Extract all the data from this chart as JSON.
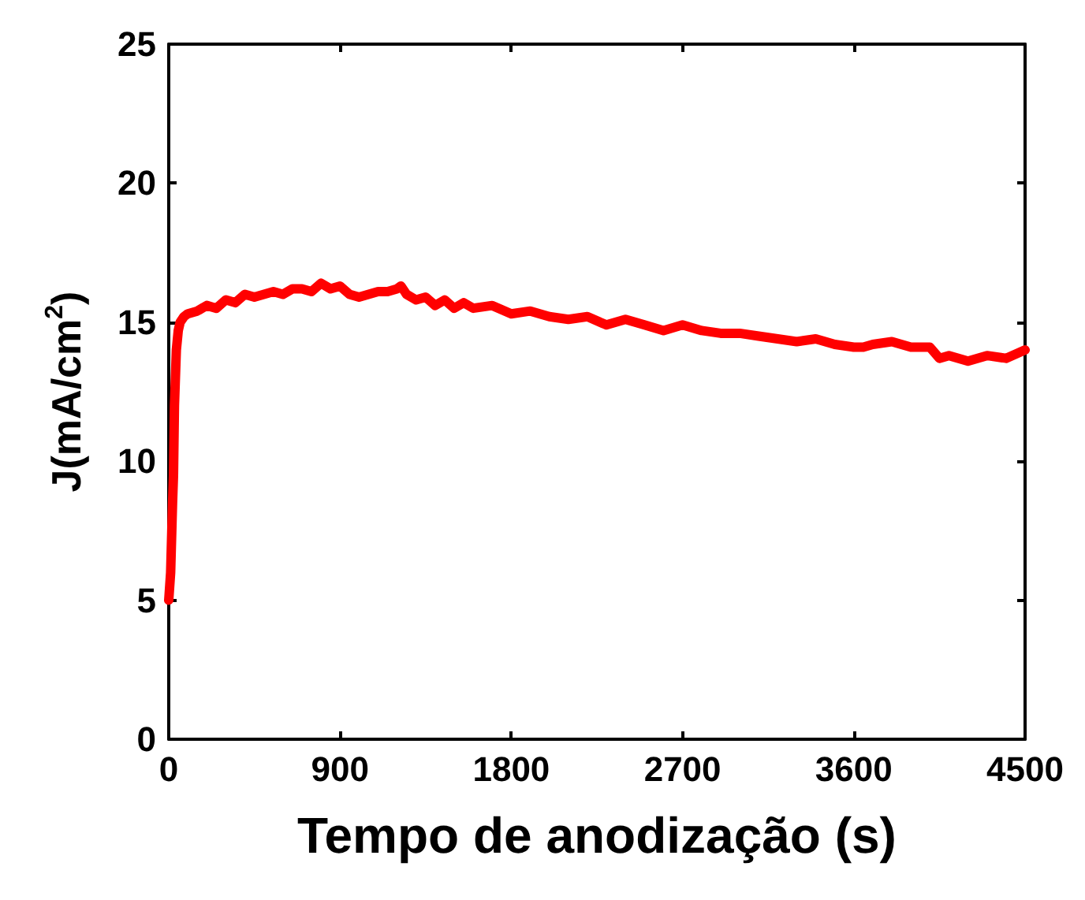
{
  "chart_data": {
    "type": "line",
    "xlabel": "Tempo de anodização (s)",
    "ylabel": "J(mA/cm$^{2}$)",
    "xlim": [
      0,
      4500
    ],
    "xticks": [
      0,
      900,
      1800,
      2700,
      3600,
      4500
    ],
    "ylim": [
      0,
      25
    ],
    "yticks": [
      0,
      5,
      10,
      15,
      20,
      25
    ],
    "grid": false,
    "marker": "none",
    "line_style": "solid",
    "series": [
      {
        "color": "#ff0000",
        "x": [
          0,
          10,
          20,
          25,
          30,
          40,
          50,
          60,
          80,
          100,
          150,
          200,
          250,
          300,
          350,
          400,
          450,
          500,
          550,
          600,
          650,
          700,
          750,
          800,
          850,
          900,
          950,
          1000,
          1050,
          1100,
          1150,
          1200,
          1220,
          1250,
          1300,
          1350,
          1400,
          1450,
          1500,
          1550,
          1600,
          1700,
          1800,
          1900,
          2000,
          2100,
          2200,
          2300,
          2400,
          2500,
          2600,
          2700,
          2800,
          2900,
          3000,
          3100,
          3200,
          3300,
          3400,
          3500,
          3600,
          3650,
          3700,
          3800,
          3900,
          4000,
          4050,
          4100,
          4200,
          4300,
          4400,
          4500
        ],
        "values": [
          5,
          6,
          8.5,
          9.5,
          12,
          14,
          14.7,
          15,
          15.2,
          15.3,
          15.4,
          15.6,
          15.5,
          15.8,
          15.7,
          16,
          15.9,
          16,
          16.1,
          16,
          16.2,
          16.2,
          16.1,
          16.4,
          16.2,
          16.3,
          16,
          15.9,
          16,
          16.1,
          16.1,
          16.2,
          16.3,
          16,
          15.8,
          15.9,
          15.6,
          15.8,
          15.5,
          15.7,
          15.5,
          15.6,
          15.3,
          15.4,
          15.2,
          15.1,
          15.2,
          14.9,
          15.1,
          14.9,
          14.7,
          14.9,
          14.7,
          14.6,
          14.6,
          14.5,
          14.4,
          14.3,
          14.4,
          14.2,
          14.1,
          14.1,
          14.2,
          14.3,
          14.1,
          14.1,
          13.7,
          13.8,
          13.6,
          13.8,
          13.7,
          14
        ]
      }
    ]
  }
}
